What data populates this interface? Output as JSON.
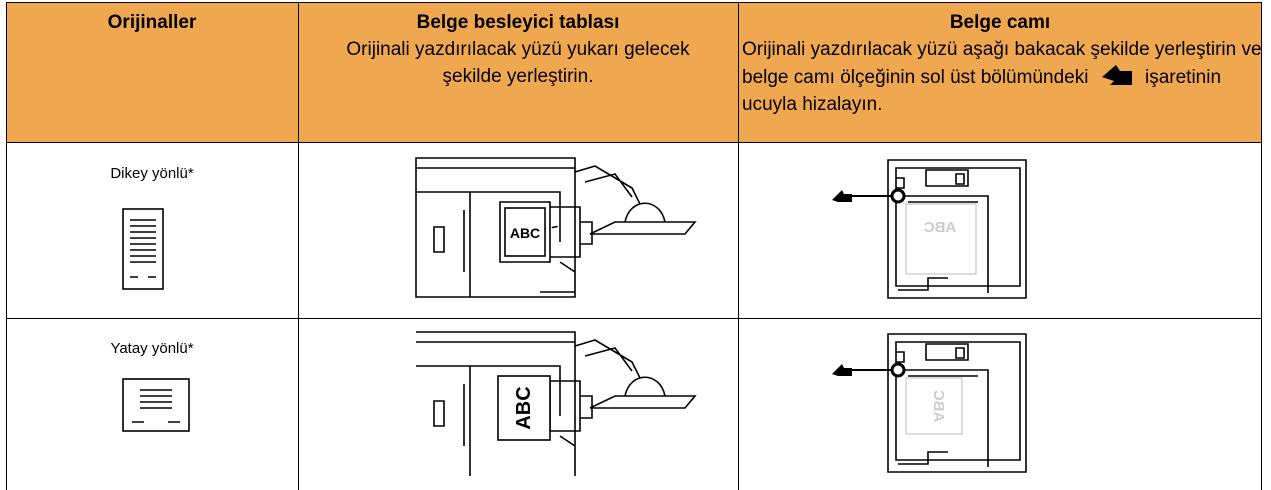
{
  "table": {
    "headers": [
      {
        "title": "Orijinaller"
      },
      {
        "title": "Belge besleyici tablası",
        "text": "Orijinali yazdırılacak yüzü yukarı gelecek şekilde yerleştirin."
      },
      {
        "title": "Belge camı",
        "text_before": "Orijinali yazdırılacak yüzü aşağı bakacak şekilde yerleştirin ve belge camı ölçeğinin sol üst bölümündeki",
        "text_after": "işaretinin ucuyla hizalayın."
      }
    ],
    "rows": [
      {
        "label": "Dikey yönlü*",
        "feeder_text": "ABC",
        "glass_text": "ABC"
      },
      {
        "label": "Yatay yönlü*",
        "feeder_text": "ABC",
        "glass_text": "ABC"
      }
    ]
  }
}
